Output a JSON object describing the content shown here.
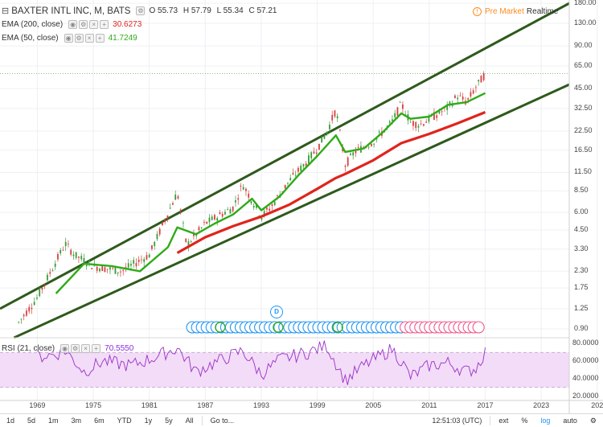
{
  "legend": {
    "symbol_icon": "collapse-square-icon",
    "title": "BAXTER INTL INC, M, BATS",
    "ohlc": {
      "o": "O 55.73",
      "h": "H 57.79",
      "l": "L 55.34",
      "c": "C 57.21"
    },
    "ema200": {
      "label": "EMA (200, close)",
      "value": "30.6273"
    },
    "ema50": {
      "label": "EMA (50, close)",
      "value": "41.7249"
    },
    "rsi": {
      "label": "RSI (21, close)",
      "value": "70.5550"
    }
  },
  "premarket": {
    "label": "Pre Market",
    "realtime": "Realtime",
    "icon": "info-circle-icon"
  },
  "price_axis": [
    "180.00",
    "130.00",
    "90.00",
    "65.00",
    "45.00",
    "32.50",
    "22.50",
    "16.50",
    "11.50",
    "8.50",
    "6.00",
    "4.50",
    "3.30",
    "2.30",
    "1.75",
    "1.25",
    "0.90"
  ],
  "rsi_axis": [
    "80.0000",
    "60.0000",
    "40.0000",
    "20.0000"
  ],
  "time_axis": [
    "1969",
    "1975",
    "1981",
    "1987",
    "1993",
    "1999",
    "2005",
    "2011",
    "2017",
    "2023",
    "202"
  ],
  "events": {
    "dividend_marker": "D"
  },
  "toolbar": {
    "ranges": [
      "1d",
      "5d",
      "1m",
      "3m",
      "6m",
      "YTD",
      "1y",
      "5y",
      "All"
    ],
    "goto": "Go to...",
    "clock": "12:51:03 (UTC)",
    "ext": "ext",
    "percent": "%",
    "log": "log",
    "auto": "auto",
    "gear_icon": "gear-icon"
  },
  "colors": {
    "ema200": "#e0241c",
    "ema50": "#2eab17",
    "rsi_line": "#9b30c8",
    "rsi_band": "#f2dcf7",
    "channel": "#2e5a1c",
    "up_candle": "#3a9a3a",
    "down_candle": "#d84040",
    "events_blue": "#2196f3",
    "events_pink": "#f05a8c"
  },
  "chart_data": {
    "type": "line",
    "title": "BAXTER INTL INC, M, BATS",
    "scale": "log",
    "x_range": [
      1965,
      2026
    ],
    "y_range": [
      0.8,
      190
    ],
    "series": [
      {
        "name": "EMA (200, close)",
        "x": [
          1984,
          1987,
          1990,
          1993,
          1996,
          1999,
          2001,
          2002,
          2005,
          2008,
          2011,
          2014,
          2017
        ],
        "values": [
          3.1,
          4.0,
          4.8,
          5.6,
          6.8,
          8.8,
          10.5,
          11.2,
          14.0,
          18.5,
          21.5,
          25.5,
          30.6273
        ]
      },
      {
        "name": "EMA (50, close)",
        "x": [
          1971,
          1974,
          1977,
          1980,
          1983,
          1984,
          1986,
          1988,
          1990,
          1992,
          1993,
          1995,
          1997,
          1999,
          2001,
          2002,
          2004,
          2006,
          2008,
          2009,
          2011,
          2013,
          2015,
          2017
        ],
        "values": [
          1.6,
          2.6,
          2.5,
          2.3,
          3.4,
          4.7,
          4.2,
          5.0,
          5.8,
          7.5,
          6.2,
          7.8,
          11.0,
          15.0,
          21.0,
          16.0,
          17.0,
          22.0,
          30.0,
          27.5,
          28.5,
          34.5,
          36.0,
          41.7249
        ]
      },
      {
        "name": "Price",
        "x": [
          1967,
          1969,
          1971,
          1972,
          1973,
          1975,
          1978,
          1981,
          1984,
          1985,
          1987,
          1990,
          1991,
          1993,
          1994,
          1996,
          1998,
          1999,
          2000,
          2001,
          2002,
          2003,
          2005,
          2007,
          2008,
          2009,
          2010,
          2012,
          2013,
          2014,
          2015,
          2016,
          2017
        ],
        "values": [
          1.0,
          1.5,
          2.7,
          3.6,
          3.0,
          2.5,
          2.3,
          3.0,
          8.3,
          3.5,
          5.0,
          6.5,
          9.5,
          5.6,
          6.5,
          10.0,
          14.0,
          17.0,
          22.0,
          32.0,
          13.0,
          16.0,
          19.0,
          26.0,
          35.0,
          26.0,
          25.0,
          30.0,
          33.0,
          40.0,
          36.0,
          46.0,
          57.21
        ]
      },
      {
        "name": "RSI (21, close)",
        "x": [
          1969,
          1971,
          1972,
          1974,
          1976,
          1979,
          1981,
          1984,
          1986,
          1988,
          1991,
          1993,
          1995,
          1998,
          2000,
          2002,
          2004,
          2007,
          2008,
          2009,
          2011,
          2013,
          2015,
          2016,
          2017
        ],
        "values": [
          65,
          68,
          72,
          48,
          60,
          55,
          62,
          75,
          48,
          58,
          72,
          45,
          62,
          70,
          78,
          38,
          55,
          74,
          60,
          42,
          55,
          58,
          48,
          52,
          70.555
        ]
      }
    ],
    "rsi_range": [
      15,
      85
    ],
    "rsi_band": [
      30,
      70
    ]
  }
}
